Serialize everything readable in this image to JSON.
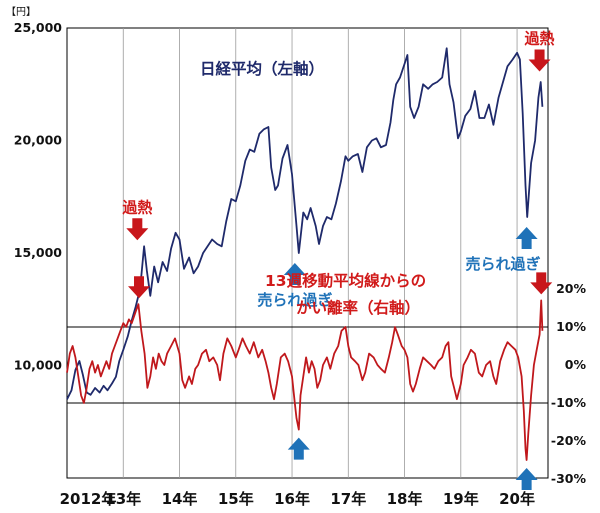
{
  "chart_data": {
    "type": "line",
    "unit_label": "【円】",
    "x_ticks": [
      "2012年",
      "13年",
      "14年",
      "15年",
      "16年",
      "17年",
      "18年",
      "19年",
      "20年"
    ],
    "left_axis": {
      "ticks": [
        "25,000",
        "20,000",
        "15,000",
        "10,000"
      ],
      "ylim": [
        5000,
        25000
      ]
    },
    "right_axis": {
      "ticks": [
        "20%",
        "10%",
        "0%",
        "-10%",
        "-20%",
        "-30%"
      ],
      "ylim": [
        -30,
        20
      ]
    },
    "reference_lines": [
      10,
      -10
    ],
    "series": [
      {
        "name": "日経平均（左軸）",
        "axis": "left",
        "color": "#1f2a6b",
        "points": [
          [
            2012.0,
            8500
          ],
          [
            2012.08,
            8900
          ],
          [
            2012.15,
            9800
          ],
          [
            2012.22,
            10200
          ],
          [
            2012.28,
            9600
          ],
          [
            2012.35,
            8800
          ],
          [
            2012.42,
            8700
          ],
          [
            2012.5,
            9000
          ],
          [
            2012.58,
            8800
          ],
          [
            2012.65,
            9100
          ],
          [
            2012.72,
            8900
          ],
          [
            2012.8,
            9200
          ],
          [
            2012.87,
            9500
          ],
          [
            2012.93,
            10200
          ],
          [
            2013.0,
            10700
          ],
          [
            2013.08,
            11300
          ],
          [
            2013.15,
            12000
          ],
          [
            2013.22,
            12600
          ],
          [
            2013.3,
            13400
          ],
          [
            2013.37,
            15300
          ],
          [
            2013.42,
            14200
          ],
          [
            2013.48,
            13100
          ],
          [
            2013.55,
            14400
          ],
          [
            2013.62,
            13700
          ],
          [
            2013.7,
            14600
          ],
          [
            2013.78,
            14200
          ],
          [
            2013.85,
            15200
          ],
          [
            2013.93,
            15900
          ],
          [
            2014.0,
            15600
          ],
          [
            2014.08,
            14300
          ],
          [
            2014.17,
            14800
          ],
          [
            2014.25,
            14100
          ],
          [
            2014.33,
            14400
          ],
          [
            2014.42,
            15000
          ],
          [
            2014.5,
            15300
          ],
          [
            2014.58,
            15600
          ],
          [
            2014.67,
            15400
          ],
          [
            2014.75,
            15300
          ],
          [
            2014.83,
            16400
          ],
          [
            2014.92,
            17400
          ],
          [
            2015.0,
            17300
          ],
          [
            2015.08,
            18000
          ],
          [
            2015.17,
            19100
          ],
          [
            2015.25,
            19600
          ],
          [
            2015.33,
            19500
          ],
          [
            2015.42,
            20300
          ],
          [
            2015.5,
            20500
          ],
          [
            2015.58,
            20600
          ],
          [
            2015.63,
            18800
          ],
          [
            2015.7,
            17800
          ],
          [
            2015.75,
            18000
          ],
          [
            2015.83,
            19200
          ],
          [
            2015.92,
            19800
          ],
          [
            2016.0,
            18500
          ],
          [
            2016.08,
            16200
          ],
          [
            2016.12,
            15000
          ],
          [
            2016.2,
            16800
          ],
          [
            2016.27,
            16500
          ],
          [
            2016.33,
            17000
          ],
          [
            2016.42,
            16200
          ],
          [
            2016.48,
            15400
          ],
          [
            2016.55,
            16200
          ],
          [
            2016.62,
            16600
          ],
          [
            2016.7,
            16500
          ],
          [
            2016.78,
            17200
          ],
          [
            2016.87,
            18200
          ],
          [
            2016.95,
            19300
          ],
          [
            2017.0,
            19100
          ],
          [
            2017.08,
            19300
          ],
          [
            2017.17,
            19400
          ],
          [
            2017.25,
            18600
          ],
          [
            2017.33,
            19700
          ],
          [
            2017.42,
            20000
          ],
          [
            2017.5,
            20100
          ],
          [
            2017.58,
            19700
          ],
          [
            2017.67,
            19800
          ],
          [
            2017.75,
            20800
          ],
          [
            2017.8,
            21800
          ],
          [
            2017.85,
            22500
          ],
          [
            2017.92,
            22800
          ],
          [
            2018.0,
            23400
          ],
          [
            2018.05,
            23800
          ],
          [
            2018.1,
            21500
          ],
          [
            2018.17,
            21000
          ],
          [
            2018.25,
            21500
          ],
          [
            2018.33,
            22500
          ],
          [
            2018.42,
            22300
          ],
          [
            2018.5,
            22500
          ],
          [
            2018.58,
            22600
          ],
          [
            2018.67,
            22800
          ],
          [
            2018.75,
            24100
          ],
          [
            2018.8,
            22500
          ],
          [
            2018.87,
            21700
          ],
          [
            2018.95,
            20100
          ],
          [
            2019.0,
            20400
          ],
          [
            2019.08,
            21100
          ],
          [
            2019.17,
            21400
          ],
          [
            2019.25,
            22200
          ],
          [
            2019.33,
            21000
          ],
          [
            2019.42,
            21000
          ],
          [
            2019.5,
            21600
          ],
          [
            2019.58,
            20700
          ],
          [
            2019.67,
            21900
          ],
          [
            2019.75,
            22600
          ],
          [
            2019.83,
            23300
          ],
          [
            2019.92,
            23600
          ],
          [
            2020.0,
            23900
          ],
          [
            2020.05,
            23600
          ],
          [
            2020.1,
            21200
          ],
          [
            2020.15,
            18000
          ],
          [
            2020.18,
            16600
          ],
          [
            2020.25,
            19000
          ],
          [
            2020.32,
            20000
          ],
          [
            2020.38,
            21900
          ],
          [
            2020.42,
            22600
          ],
          [
            2020.45,
            21500
          ]
        ]
      },
      {
        "name": "13週移動平均線からのかい離率（右軸）",
        "axis": "right",
        "color": "#c0181c",
        "points": [
          [
            2012.0,
            -2
          ],
          [
            2012.05,
            3
          ],
          [
            2012.1,
            5
          ],
          [
            2012.15,
            2
          ],
          [
            2012.2,
            -3
          ],
          [
            2012.25,
            -8
          ],
          [
            2012.3,
            -10
          ],
          [
            2012.35,
            -6
          ],
          [
            2012.4,
            -1
          ],
          [
            2012.45,
            1
          ],
          [
            2012.5,
            -2
          ],
          [
            2012.55,
            0
          ],
          [
            2012.6,
            -3
          ],
          [
            2012.65,
            -1
          ],
          [
            2012.7,
            1
          ],
          [
            2012.75,
            -1
          ],
          [
            2012.8,
            3
          ],
          [
            2012.85,
            5
          ],
          [
            2012.9,
            7
          ],
          [
            2012.95,
            9
          ],
          [
            2013.0,
            11
          ],
          [
            2013.05,
            10
          ],
          [
            2013.1,
            12
          ],
          [
            2013.15,
            11
          ],
          [
            2013.22,
            14
          ],
          [
            2013.27,
            16
          ],
          [
            2013.32,
            9
          ],
          [
            2013.38,
            3
          ],
          [
            2013.43,
            -6
          ],
          [
            2013.48,
            -3
          ],
          [
            2013.53,
            2
          ],
          [
            2013.58,
            -1
          ],
          [
            2013.63,
            3
          ],
          [
            2013.68,
            1
          ],
          [
            2013.73,
            0
          ],
          [
            2013.78,
            3
          ],
          [
            2013.85,
            5
          ],
          [
            2013.92,
            7
          ],
          [
            2014.0,
            3
          ],
          [
            2014.05,
            -4
          ],
          [
            2014.1,
            -6
          ],
          [
            2014.17,
            -3
          ],
          [
            2014.22,
            -5
          ],
          [
            2014.28,
            -1
          ],
          [
            2014.33,
            0
          ],
          [
            2014.4,
            3
          ],
          [
            2014.47,
            4
          ],
          [
            2014.53,
            1
          ],
          [
            2014.6,
            2
          ],
          [
            2014.67,
            0
          ],
          [
            2014.72,
            -4
          ],
          [
            2014.78,
            3
          ],
          [
            2014.85,
            7
          ],
          [
            2014.92,
            5
          ],
          [
            2015.0,
            2
          ],
          [
            2015.05,
            4
          ],
          [
            2015.12,
            7
          ],
          [
            2015.18,
            5
          ],
          [
            2015.25,
            3
          ],
          [
            2015.32,
            6
          ],
          [
            2015.4,
            2
          ],
          [
            2015.47,
            4
          ],
          [
            2015.53,
            1
          ],
          [
            2015.58,
            -2
          ],
          [
            2015.63,
            -6
          ],
          [
            2015.68,
            -9
          ],
          [
            2015.73,
            -5
          ],
          [
            2015.8,
            2
          ],
          [
            2015.87,
            3
          ],
          [
            2015.93,
            1
          ],
          [
            2016.0,
            -3
          ],
          [
            2016.05,
            -10
          ],
          [
            2016.08,
            -14
          ],
          [
            2016.12,
            -17
          ],
          [
            2016.15,
            -8
          ],
          [
            2016.2,
            -3
          ],
          [
            2016.25,
            2
          ],
          [
            2016.3,
            -2
          ],
          [
            2016.35,
            1
          ],
          [
            2016.4,
            -1
          ],
          [
            2016.45,
            -6
          ],
          [
            2016.5,
            -4
          ],
          [
            2016.55,
            0
          ],
          [
            2016.62,
            2
          ],
          [
            2016.68,
            -1
          ],
          [
            2016.75,
            3
          ],
          [
            2016.82,
            5
          ],
          [
            2016.88,
            9
          ],
          [
            2016.95,
            10
          ],
          [
            2017.0,
            5
          ],
          [
            2017.05,
            2
          ],
          [
            2017.12,
            1
          ],
          [
            2017.18,
            0
          ],
          [
            2017.25,
            -4
          ],
          [
            2017.3,
            -2
          ],
          [
            2017.37,
            3
          ],
          [
            2017.45,
            2
          ],
          [
            2017.52,
            0
          ],
          [
            2017.58,
            -1
          ],
          [
            2017.65,
            -2
          ],
          [
            2017.72,
            2
          ],
          [
            2017.78,
            6
          ],
          [
            2017.83,
            10
          ],
          [
            2017.88,
            8
          ],
          [
            2017.95,
            5
          ],
          [
            2018.0,
            4
          ],
          [
            2018.05,
            2
          ],
          [
            2018.1,
            -5
          ],
          [
            2018.15,
            -7
          ],
          [
            2018.2,
            -5
          ],
          [
            2018.27,
            -1
          ],
          [
            2018.33,
            2
          ],
          [
            2018.4,
            1
          ],
          [
            2018.47,
            0
          ],
          [
            2018.53,
            -1
          ],
          [
            2018.6,
            1
          ],
          [
            2018.67,
            2
          ],
          [
            2018.73,
            5
          ],
          [
            2018.78,
            6
          ],
          [
            2018.83,
            -3
          ],
          [
            2018.88,
            -6
          ],
          [
            2018.93,
            -9
          ],
          [
            2019.0,
            -5
          ],
          [
            2019.05,
            0
          ],
          [
            2019.12,
            2
          ],
          [
            2019.18,
            4
          ],
          [
            2019.25,
            3
          ],
          [
            2019.32,
            -2
          ],
          [
            2019.38,
            -3
          ],
          [
            2019.45,
            0
          ],
          [
            2019.52,
            1
          ],
          [
            2019.58,
            -3
          ],
          [
            2019.63,
            -5
          ],
          [
            2019.7,
            1
          ],
          [
            2019.77,
            4
          ],
          [
            2019.83,
            6
          ],
          [
            2019.9,
            5
          ],
          [
            2019.97,
            4
          ],
          [
            2020.02,
            2
          ],
          [
            2020.08,
            -3
          ],
          [
            2020.12,
            -12
          ],
          [
            2020.15,
            -22
          ],
          [
            2020.17,
            -25
          ],
          [
            2020.2,
            -18
          ],
          [
            2020.25,
            -8
          ],
          [
            2020.3,
            0
          ],
          [
            2020.35,
            4
          ],
          [
            2020.4,
            8
          ],
          [
            2020.43,
            17
          ],
          [
            2020.45,
            9
          ]
        ]
      }
    ],
    "annotations": [
      {
        "text": "過熱",
        "color": "red",
        "arrow": "down",
        "x": 2013.25,
        "axis": "left",
        "y": 15300
      },
      {
        "text": "過熱",
        "color": "red",
        "arrow": "down",
        "x": 2020.4,
        "axis": "left",
        "y": 22800
      },
      {
        "text": "売られ過ぎ",
        "color": "blue",
        "arrow": "up",
        "x": 2016.05,
        "axis": "left",
        "y": 15000
      },
      {
        "text": "売られ過ぎ",
        "color": "blue",
        "arrow": "up",
        "x": 2020.17,
        "axis": "left",
        "y": 16600
      },
      {
        "text": "",
        "color": "red",
        "arrow": "down",
        "x": 2013.28,
        "axis": "right",
        "y": 16
      },
      {
        "text": "",
        "color": "red",
        "arrow": "down",
        "x": 2020.43,
        "axis": "right",
        "y": 17
      },
      {
        "text": "",
        "color": "blue",
        "arrow": "up",
        "x": 2016.12,
        "axis": "right",
        "y": -17
      },
      {
        "text": "",
        "color": "blue",
        "arrow": "up",
        "x": 2020.17,
        "axis": "right",
        "y": -25
      }
    ]
  },
  "labels": {
    "nikkei_label": "日経平均（左軸）",
    "deviation_line1": "13週移動平均線からの",
    "deviation_line2": "かい離率（右軸）"
  },
  "colors": {
    "nikkei": "#1f2a6b",
    "deviation": "#c0181c",
    "arrow_red": "#c8161b",
    "arrow_blue": "#1f72b8"
  }
}
